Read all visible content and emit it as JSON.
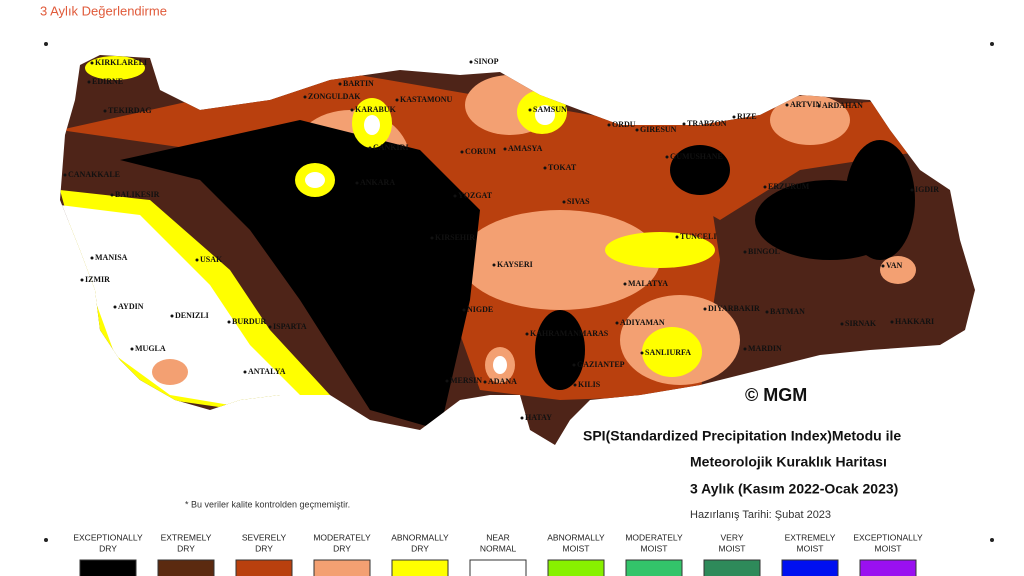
{
  "header": {
    "title": "3 Aylık Değerlendirme"
  },
  "map": {
    "title_lines": [
      "SPI(Standardized Precipitation Index)Metodu ile",
      "Meteorolojik Kuraklık Haritası",
      "3 Aylık (Kasım 2022-Ocak 2023)"
    ],
    "date": "Hazırlanış Tarihi: Şubat 2023",
    "copyright": "© MGM",
    "footnote": "* Bu veriler kalite kontrolden geçmemiştir.",
    "cities": [
      "KIRKLARELI",
      "EDIRNE",
      "TEKIRDAG",
      "CANAKKALE",
      "BALIKESIR",
      "MANISA",
      "IZMIR",
      "AYDIN",
      "DENIZLI",
      "MUGLA",
      "ANTALYA",
      "BURDUR",
      "ISPARTA",
      "USAK",
      "BARTIN",
      "ZONGULDAK",
      "KARABUK",
      "KASTAMONU",
      "SINOP",
      "SAMSUN",
      "ORDU",
      "GIRESUN",
      "TRABZON",
      "RIZE",
      "ARTVIN",
      "ARDAHAN",
      "CANKIRI",
      "CORUM",
      "AMASYA",
      "TOKAT",
      "ANKARA",
      "YOZGAT",
      "SIVAS",
      "GUMUSHANE",
      "ERZURUM",
      "IGDIR",
      "KIRSEHIR",
      "KAYSERI",
      "MALATYA",
      "TUNCELI",
      "BINGOL",
      "VAN",
      "NIGDE",
      "KAHRAMANMARAS",
      "ADIYAMAN",
      "DIYARBAKIR",
      "BATMAN",
      "SIRNAK",
      "HAKKARI",
      "MARDIN",
      "SANLIURFA",
      "GAZIANTEP",
      "ADANA",
      "MERSIN",
      "KILIS",
      "HATAY"
    ]
  },
  "legend": [
    {
      "lines": [
        "EXCEPTIONALLY",
        "DRY"
      ],
      "color": "#000000"
    },
    {
      "lines": [
        "EXTREMELY",
        "DRY"
      ],
      "color": "#5b2a10"
    },
    {
      "lines": [
        "SEVERELY",
        "DRY"
      ],
      "color": "#b9400e"
    },
    {
      "lines": [
        "MODERATELY",
        "DRY"
      ],
      "color": "#f3a072"
    },
    {
      "lines": [
        "ABNORMALLY",
        "DRY"
      ],
      "color": "#ffff00"
    },
    {
      "lines": [
        "NEAR",
        "NORMAL"
      ],
      "color": "#ffffff"
    },
    {
      "lines": [
        "ABNORMALLY",
        "MOIST"
      ],
      "color": "#88f000"
    },
    {
      "lines": [
        "MODERATELY",
        "MOIST"
      ],
      "color": "#33c46a"
    },
    {
      "lines": [
        "VERY",
        "MOIST"
      ],
      "color": "#2e8a5a"
    },
    {
      "lines": [
        "EXTREMELY",
        "MOIST"
      ],
      "color": "#0010f0"
    },
    {
      "lines": [
        "EXCEPTIONALLY",
        "MOIST"
      ],
      "color": "#9a10f0"
    }
  ]
}
